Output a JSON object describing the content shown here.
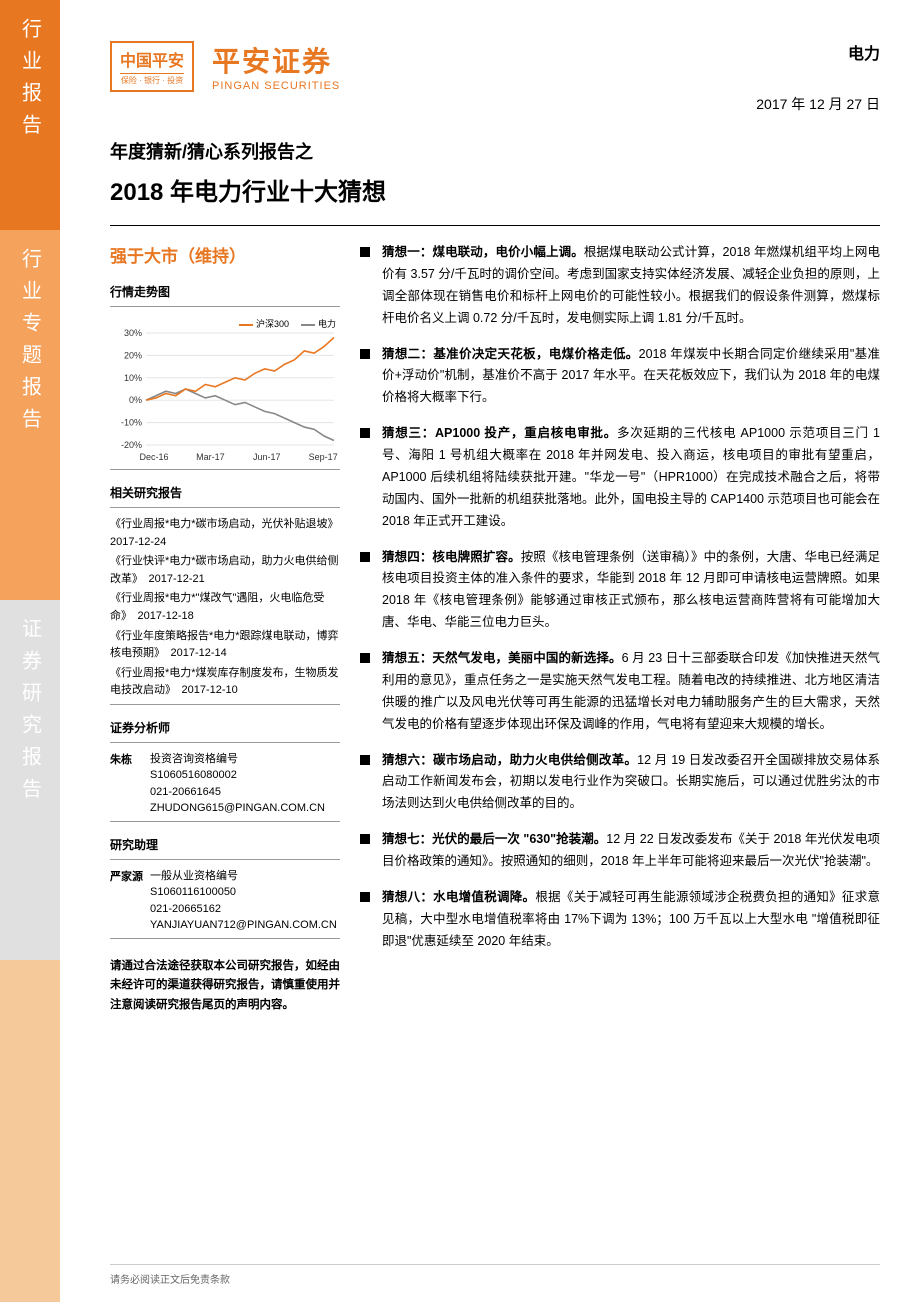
{
  "sidebar": {
    "segments": [
      {
        "label": "行业报告",
        "bg": "#e87722"
      },
      {
        "label": "行业专题报告",
        "bg": "#f5a25d"
      },
      {
        "label": "证券研究报告",
        "bg": "#e0e0e0"
      },
      {
        "label": "",
        "bg": "#f5c99a"
      }
    ]
  },
  "logo": {
    "box_cn": "中国平安",
    "box_sub": "保险 · 银行 · 投资",
    "text_cn": "平安证券",
    "text_en": "PINGAN SECURITIES"
  },
  "header": {
    "sector": "电力",
    "date": "2017 年 12 月 27 日"
  },
  "title": {
    "series": "年度猜新/猜心系列报告之",
    "main": "2018 年电力行业十大猜想"
  },
  "rating": "强于大市（维持）",
  "chart": {
    "title": "行情走势图",
    "legend": {
      "a": "沪深300",
      "b": "电力"
    },
    "y_ticks": [
      "30%",
      "20%",
      "10%",
      "0%",
      "-10%",
      "-20%"
    ],
    "x_ticks": [
      "Dec-16",
      "Mar-17",
      "Jun-17",
      "Sep-17"
    ],
    "colors": {
      "a": "#e87722",
      "b": "#888888",
      "grid": "#e5e5e5",
      "axis": "#666"
    },
    "series_a": [
      0,
      1,
      3,
      2,
      5,
      4,
      7,
      6,
      8,
      10,
      9,
      12,
      14,
      13,
      16,
      18,
      22,
      21,
      24,
      28
    ],
    "series_b": [
      0,
      2,
      4,
      3,
      5,
      3,
      1,
      2,
      0,
      -2,
      -1,
      -3,
      -5,
      -6,
      -8,
      -10,
      -12,
      -13,
      -16,
      -18
    ]
  },
  "related": {
    "title": "相关研究报告",
    "items": [
      "《行业周报*电力*碳市场启动，光伏补贴退坡》　2017-12-24",
      "《行业快评*电力*碳市场启动，助力火电供给侧改革》　2017-12-21",
      "《行业周报*电力*\"煤改气\"遇阻，火电临危受命》　2017-12-18",
      "《行业年度策略报告*电力*跟踪煤电联动，博弈核电预期》　2017-12-14",
      "《行业周报*电力*煤炭库存制度发布，生物质发电技改启动》　2017-12-10"
    ]
  },
  "analyst": {
    "title": "证券分析师",
    "name": "朱栋",
    "qual_label": "投资咨询资格编号",
    "qual": "S1060516080002",
    "phone": "021-20661645",
    "email": "ZHUDONG615@PINGAN.COM.CN"
  },
  "assistant": {
    "title": "研究助理",
    "name": "严家源",
    "qual_label": "一般从业资格编号",
    "qual": "S1060116100050",
    "phone": "021-20665162",
    "email": "YANJIAYUAN712@PINGAN.COM.CN"
  },
  "disclaimer": "请通过合法途径获取本公司研究报告，如经由未经许可的渠道获得研究报告，请慎重使用并注意阅读研究报告尾页的声明内容。",
  "guesses": [
    {
      "bold": "猜想一：煤电联动，电价小幅上调。",
      "text": "根据煤电联动公式计算，2018 年燃煤机组平均上网电价有 3.57 分/千瓦时的调价空间。考虑到国家支持实体经济发展、减轻企业负担的原则，上调全部体现在销售电价和标杆上网电价的可能性较小。根据我们的假设条件测算，燃煤标杆电价名义上调 0.72 分/千瓦时，发电侧实际上调 1.81 分/千瓦时。"
    },
    {
      "bold": "猜想二：基准价决定天花板，电煤价格走低。",
      "text": "2018 年煤炭中长期合同定价继续采用\"基准价+浮动价\"机制，基准价不高于 2017 年水平。在天花板效应下，我们认为 2018 年的电煤价格将大概率下行。"
    },
    {
      "bold": "猜想三：AP1000 投产，重启核电审批。",
      "text": "多次延期的三代核电 AP1000 示范项目三门 1 号、海阳 1 号机组大概率在 2018 年并网发电、投入商运，核电项目的审批有望重启，AP1000 后续机组将陆续获批开建。\"华龙一号\"（HPR1000）在完成技术融合之后，将带动国内、国外一批新的机组获批落地。此外，国电投主导的 CAP1400 示范项目也可能会在 2018 年正式开工建设。"
    },
    {
      "bold": "猜想四：核电牌照扩容。",
      "text": "按照《核电管理条例（送审稿）》中的条例，大唐、华电已经满足核电项目投资主体的准入条件的要求，华能到 2018 年 12 月即可申请核电运营牌照。如果 2018 年《核电管理条例》能够通过审核正式颁布，那么核电运营商阵营将有可能增加大唐、华电、华能三位电力巨头。"
    },
    {
      "bold": "猜想五：天然气发电，美丽中国的新选择。",
      "text": "6 月 23 日十三部委联合印发《加快推进天然气利用的意见》，重点任务之一是实施天然气发电工程。随着电改的持续推进、北方地区清洁供暖的推广以及风电光伏等可再生能源的迅猛增长对电力辅助服务产生的巨大需求，天然气发电的价格有望逐步体现出环保及调峰的作用，气电将有望迎来大规模的增长。"
    },
    {
      "bold": "猜想六：碳市场启动，助力火电供给侧改革。",
      "text": "12 月 19 日发改委召开全国碳排放交易体系启动工作新闻发布会，初期以发电行业作为突破口。长期实施后，可以通过优胜劣汰的市场法则达到火电供给侧改革的目的。"
    },
    {
      "bold": "猜想七：光伏的最后一次 \"630\"抢装潮。",
      "text": "12 月 22 日发改委发布《关于 2018 年光伏发电项目价格政策的通知》。按照通知的细则，2018 年上半年可能将迎来最后一次光伏\"抢装潮\"。"
    },
    {
      "bold": "猜想八：水电增值税调降。",
      "text": "根据《关于减轻可再生能源领域涉企税费负担的通知》征求意见稿，大中型水电增值税率将由 17%下调为 13%；100 万千瓦以上大型水电 \"增值税即征即退\"优惠延续至 2020 年结束。"
    }
  ],
  "footer": "请务必阅读正文后免责条款"
}
